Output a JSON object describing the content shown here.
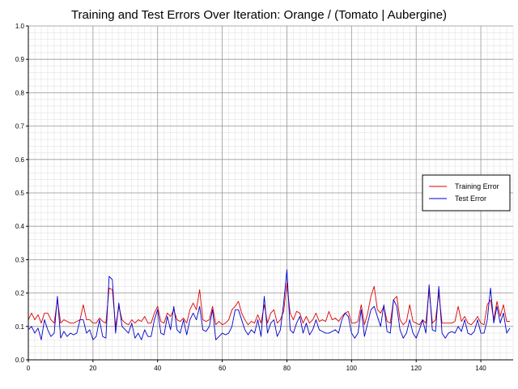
{
  "chart_data": {
    "type": "line",
    "title": "Training and Test Errors Over Iteration: Orange / (Tomato | Aubergine)",
    "xlabel": "",
    "ylabel": "",
    "xlim": [
      0,
      150
    ],
    "ylim": [
      0,
      1
    ],
    "x_ticks": [
      "0",
      "20",
      "40",
      "60",
      "80",
      "100",
      "120",
      "140"
    ],
    "y_ticks": [
      "0.0",
      "0.1",
      "0.2",
      "0.3",
      "0.4",
      "0.5",
      "0.6",
      "0.7",
      "0.8",
      "0.9",
      "1.0"
    ],
    "grid": true,
    "legend_position": "right",
    "series": [
      {
        "name": "Training Error",
        "color": "#dd0000",
        "values": [
          0.12,
          0.14,
          0.12,
          0.135,
          0.11,
          0.14,
          0.14,
          0.12,
          0.11,
          0.18,
          0.11,
          0.12,
          0.115,
          0.11,
          0.11,
          0.115,
          0.12,
          0.165,
          0.12,
          0.12,
          0.11,
          0.11,
          0.125,
          0.115,
          0.11,
          0.215,
          0.21,
          0.1,
          0.16,
          0.12,
          0.11,
          0.105,
          0.12,
          0.11,
          0.12,
          0.115,
          0.13,
          0.11,
          0.11,
          0.14,
          0.16,
          0.115,
          0.11,
          0.14,
          0.13,
          0.15,
          0.12,
          0.115,
          0.125,
          0.11,
          0.15,
          0.17,
          0.15,
          0.21,
          0.12,
          0.115,
          0.12,
          0.16,
          0.105,
          0.115,
          0.105,
          0.11,
          0.12,
          0.15,
          0.16,
          0.175,
          0.14,
          0.12,
          0.105,
          0.115,
          0.11,
          0.135,
          0.11,
          0.165,
          0.11,
          0.14,
          0.15,
          0.11,
          0.12,
          0.145,
          0.23,
          0.14,
          0.12,
          0.145,
          0.14,
          0.11,
          0.13,
          0.11,
          0.12,
          0.14,
          0.115,
          0.12,
          0.115,
          0.145,
          0.12,
          0.125,
          0.115,
          0.13,
          0.14,
          0.145,
          0.11,
          0.11,
          0.115,
          0.165,
          0.105,
          0.14,
          0.19,
          0.22,
          0.15,
          0.14,
          0.16,
          0.115,
          0.11,
          0.18,
          0.19,
          0.12,
          0.105,
          0.115,
          0.165,
          0.115,
          0.11,
          0.105,
          0.12,
          0.11,
          0.21,
          0.11,
          0.12,
          0.2,
          0.11,
          0.11,
          0.11,
          0.11,
          0.115,
          0.16,
          0.115,
          0.13,
          0.11,
          0.105,
          0.115,
          0.13,
          0.11,
          0.105,
          0.165,
          0.18,
          0.12,
          0.175,
          0.13,
          0.165,
          0.115,
          0.115
        ]
      },
      {
        "name": "Test Error",
        "color": "#0000cc",
        "values": [
          0.09,
          0.1,
          0.08,
          0.095,
          0.06,
          0.12,
          0.09,
          0.07,
          0.08,
          0.19,
          0.065,
          0.085,
          0.07,
          0.08,
          0.075,
          0.08,
          0.12,
          0.12,
          0.08,
          0.09,
          0.06,
          0.07,
          0.12,
          0.07,
          0.065,
          0.25,
          0.24,
          0.08,
          0.17,
          0.1,
          0.09,
          0.08,
          0.11,
          0.065,
          0.08,
          0.06,
          0.09,
          0.07,
          0.07,
          0.12,
          0.15,
          0.08,
          0.075,
          0.13,
          0.09,
          0.16,
          0.09,
          0.08,
          0.12,
          0.075,
          0.12,
          0.14,
          0.12,
          0.16,
          0.09,
          0.085,
          0.1,
          0.15,
          0.06,
          0.07,
          0.08,
          0.075,
          0.08,
          0.1,
          0.15,
          0.15,
          0.12,
          0.09,
          0.075,
          0.09,
          0.08,
          0.12,
          0.07,
          0.19,
          0.08,
          0.11,
          0.12,
          0.07,
          0.09,
          0.17,
          0.27,
          0.09,
          0.08,
          0.11,
          0.13,
          0.08,
          0.11,
          0.075,
          0.09,
          0.12,
          0.09,
          0.085,
          0.08,
          0.08,
          0.085,
          0.09,
          0.08,
          0.12,
          0.14,
          0.13,
          0.08,
          0.065,
          0.08,
          0.15,
          0.07,
          0.11,
          0.15,
          0.16,
          0.13,
          0.1,
          0.165,
          0.085,
          0.08,
          0.18,
          0.16,
          0.09,
          0.065,
          0.08,
          0.12,
          0.08,
          0.065,
          0.09,
          0.12,
          0.08,
          0.225,
          0.09,
          0.085,
          0.22,
          0.08,
          0.065,
          0.08,
          0.085,
          0.08,
          0.1,
          0.085,
          0.12,
          0.08,
          0.075,
          0.085,
          0.12,
          0.08,
          0.08,
          0.12,
          0.215,
          0.11,
          0.16,
          0.11,
          0.14,
          0.08,
          0.095
        ]
      }
    ]
  }
}
